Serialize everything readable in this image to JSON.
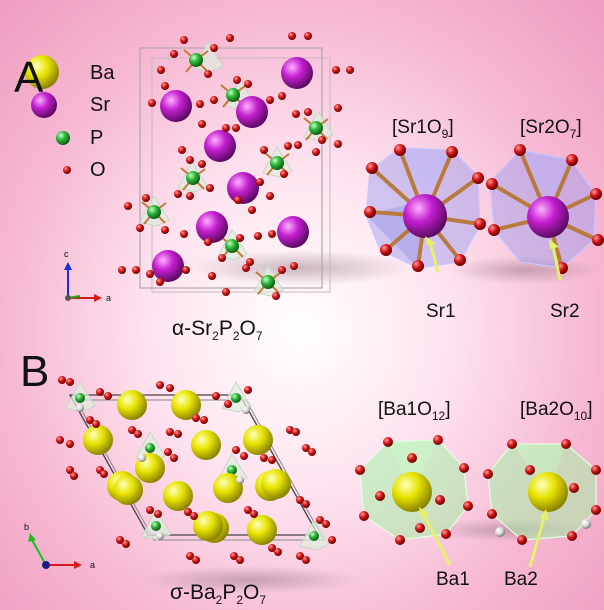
{
  "panel_a": {
    "letter": "A",
    "legend": [
      {
        "label": "Ba",
        "color": "#e6e000"
      },
      {
        "label": "Sr",
        "color": "#cc22cc"
      },
      {
        "label": "P",
        "color": "#2fbf3a"
      },
      {
        "label": "O",
        "color": "#d01818"
      }
    ],
    "structure_name": "α-Sr",
    "structure_sub1": "2",
    "structure_mid": "P",
    "structure_sub2": "2",
    "structure_end": "O",
    "structure_sub3": "7",
    "axis_c": "c",
    "axis_a": "a",
    "polyhedra": [
      {
        "pre": "[Sr1O",
        "sub": "9",
        "post": "]",
        "site": "Sr1"
      },
      {
        "pre": "[Sr2O",
        "sub": "7",
        "post": "]",
        "site": "Sr2"
      }
    ]
  },
  "panel_b": {
    "letter": "B",
    "structure_name": "σ-Ba",
    "structure_sub1": "2",
    "structure_mid": "P",
    "structure_sub2": "2",
    "structure_end": "O",
    "structure_sub3": "7",
    "axis_b": "b",
    "axis_a": "a",
    "polyhedra": [
      {
        "pre": "[Ba1O",
        "sub": "12",
        "post": "]",
        "site": "Ba1"
      },
      {
        "pre": "[Ba2O",
        "sub": "10",
        "post": "]",
        "site": "Ba2"
      }
    ]
  }
}
